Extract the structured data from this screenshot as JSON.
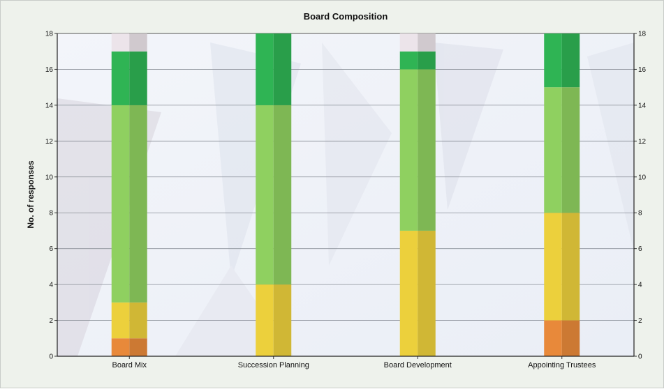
{
  "chart_data": {
    "type": "bar",
    "stacked": true,
    "title": "Board Composition",
    "xlabel": "",
    "ylabel": "No. of responses",
    "ylim": [
      0,
      18
    ],
    "yticks": [
      0,
      2,
      4,
      6,
      8,
      10,
      12,
      14,
      16,
      18
    ],
    "grid": true,
    "legend": "none",
    "categories": [
      "Board Mix",
      "Succession Planning",
      "Board Development",
      "Appointing Trustees"
    ],
    "series": [
      {
        "color": "#e8893a",
        "values": [
          1,
          0,
          0,
          2
        ]
      },
      {
        "color": "#ecd03c",
        "values": [
          2,
          4,
          7,
          6
        ]
      },
      {
        "color": "#8fd060",
        "values": [
          11,
          10,
          9,
          7
        ]
      },
      {
        "color": "#2fb454",
        "values": [
          3,
          4,
          1,
          3
        ]
      },
      {
        "color": "#ece4ea",
        "values": [
          1,
          0,
          1,
          0
        ]
      }
    ]
  }
}
